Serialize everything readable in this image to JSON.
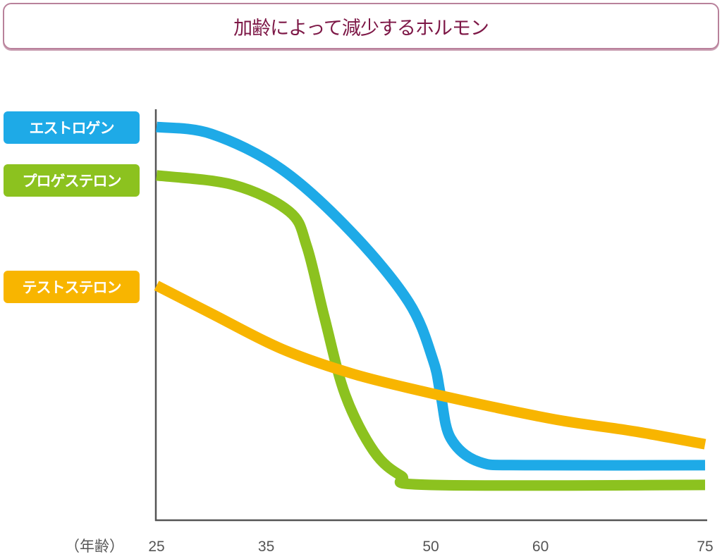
{
  "chart_data": {
    "type": "line",
    "title": "加齢によって減少するホルモン",
    "xlabel": "（年齢）",
    "ylabel": "",
    "xlim": [
      25,
      75
    ],
    "ylim": [
      0,
      100
    ],
    "x_ticks": [
      25,
      35,
      50,
      60,
      75
    ],
    "grid": false,
    "legend_placement": "left",
    "series": [
      {
        "name": "エストロゲン",
        "color": "#1eaae7",
        "points": [
          [
            25,
            95.7
          ],
          [
            30,
            94
          ],
          [
            36.4,
            85.4
          ],
          [
            42.8,
            70
          ],
          [
            48,
            53
          ],
          [
            50.2,
            39
          ],
          [
            50.9,
            30.5
          ],
          [
            51.8,
            20
          ],
          [
            54.4,
            14.2
          ],
          [
            58.9,
            13.4
          ],
          [
            75,
            13.4
          ]
        ]
      },
      {
        "name": "プロゲステロン",
        "color": "#8cc21f",
        "points": [
          [
            25,
            83.9
          ],
          [
            32,
            81.6
          ],
          [
            37.1,
            75.1
          ],
          [
            38.7,
            66.6
          ],
          [
            40.3,
            49.4
          ],
          [
            42.2,
            30.5
          ],
          [
            44.8,
            16.8
          ],
          [
            47.3,
            10.8
          ],
          [
            49.9,
            8.6
          ],
          [
            75,
            8.6
          ]
        ]
      },
      {
        "name": "テストステロン",
        "color": "#f8b500",
        "points": [
          [
            25,
            57.1
          ],
          [
            30,
            50.3
          ],
          [
            36.4,
            41.7
          ],
          [
            42.8,
            35.7
          ],
          [
            49.2,
            31.4
          ],
          [
            55.6,
            27.6
          ],
          [
            62,
            24.2
          ],
          [
            68.6,
            21.6
          ],
          [
            75,
            18.5
          ]
        ]
      }
    ]
  }
}
